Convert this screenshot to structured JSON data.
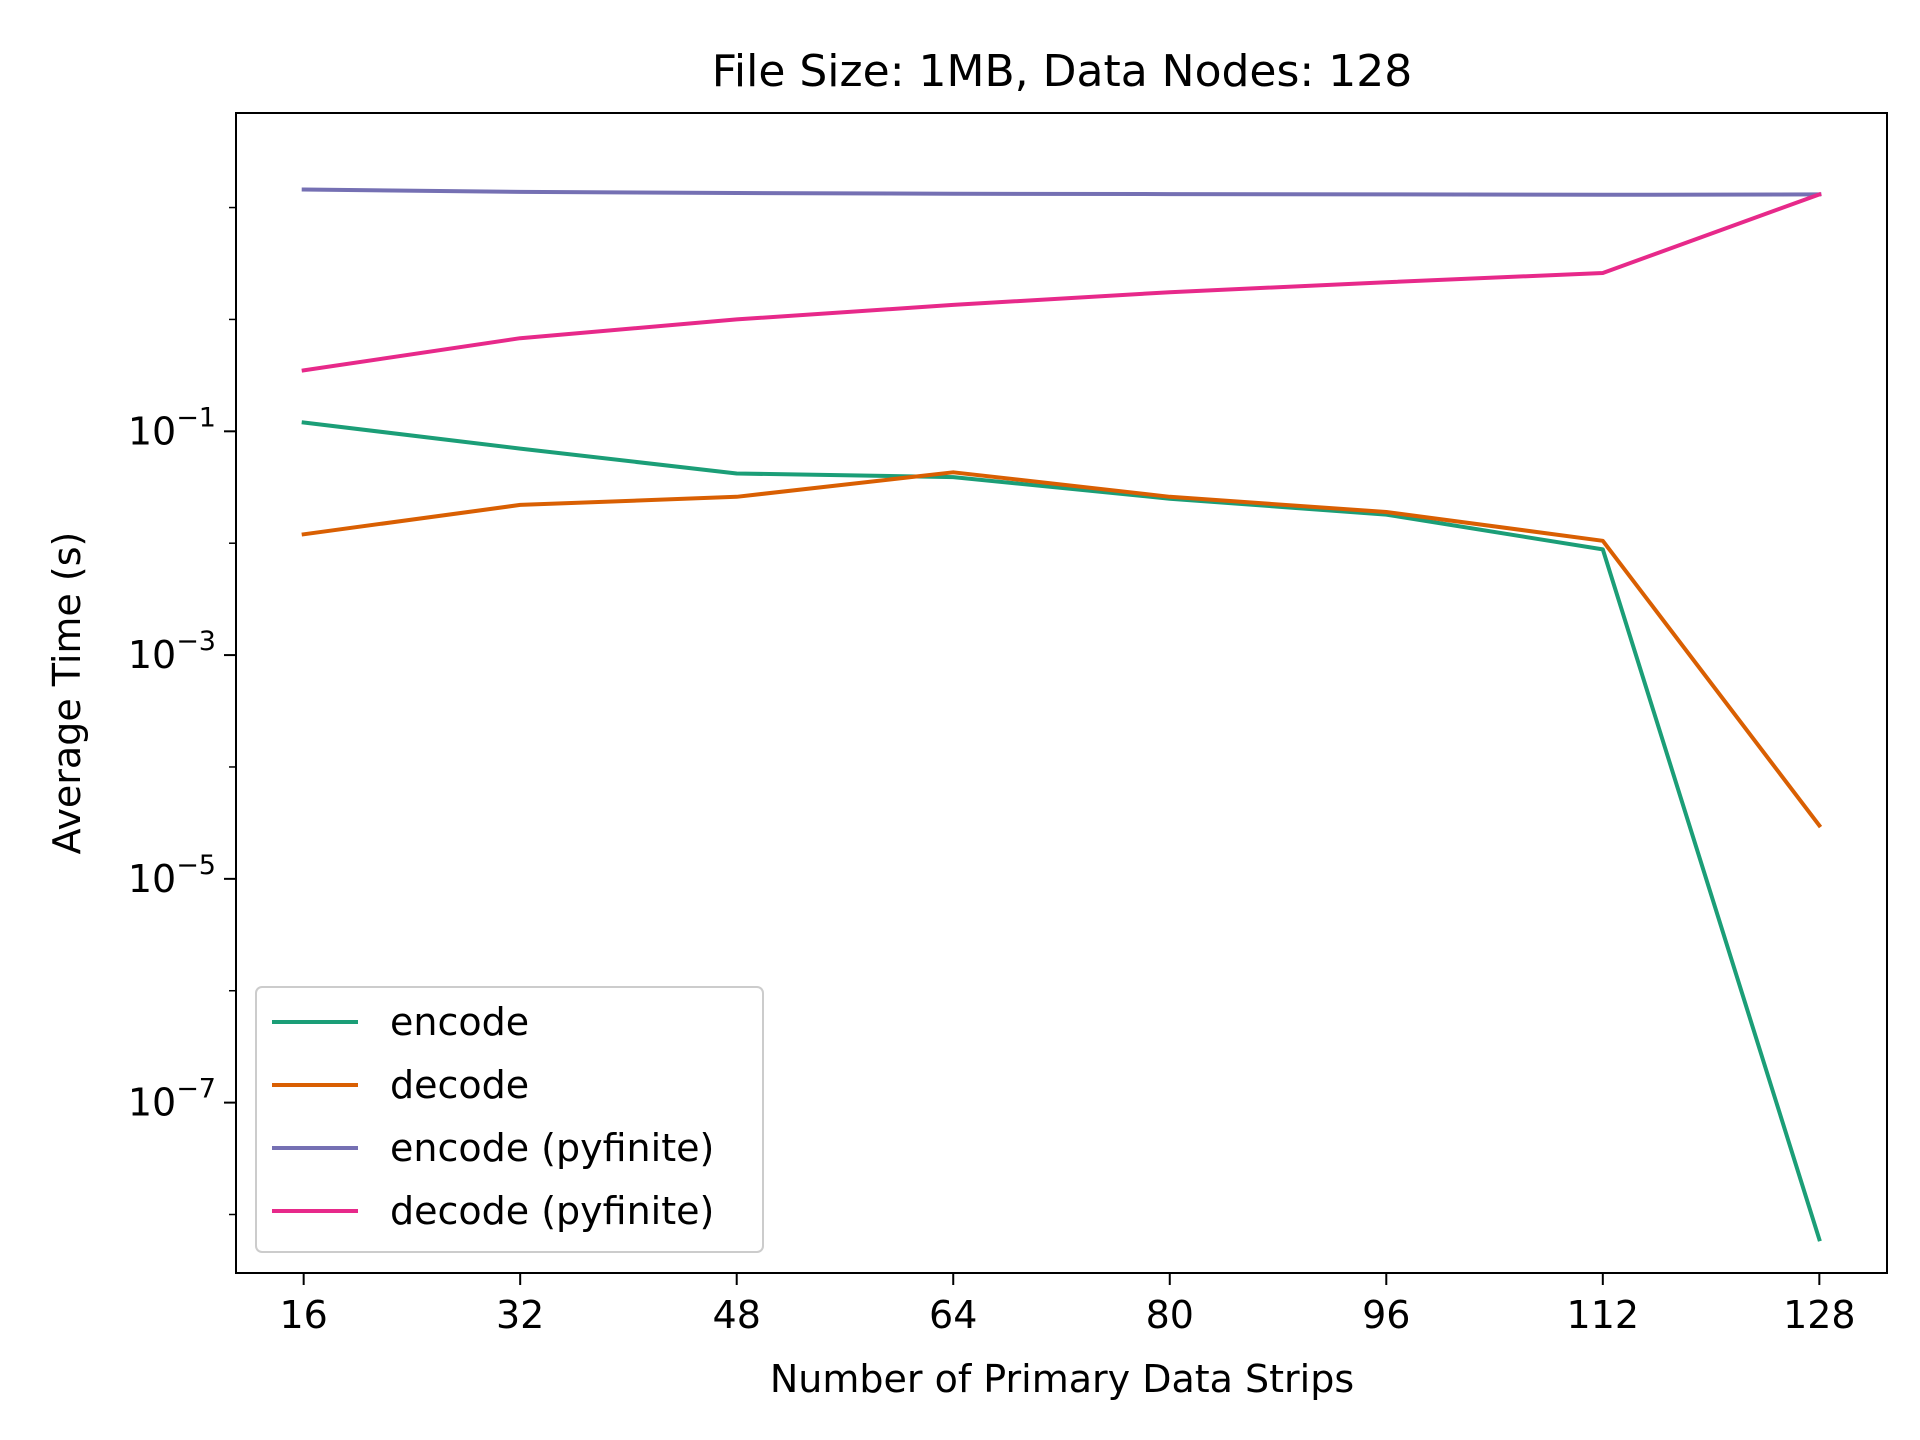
{
  "chart_data": {
    "type": "line",
    "title": "File Size: 1MB, Data Nodes: 128",
    "xlabel": "Number of Primary Data Strips",
    "ylabel": "Average Time (s)",
    "y_scale": "log",
    "x": [
      16,
      32,
      48,
      64,
      80,
      96,
      112,
      128
    ],
    "xlim": [
      11,
      133
    ],
    "ylim": [
      3e-09,
      70
    ],
    "x_ticks": [
      16,
      32,
      48,
      64,
      80,
      96,
      112,
      128
    ],
    "y_ticks": [
      {
        "value": 0.1,
        "base": "10",
        "exp": "−1"
      },
      {
        "value": 0.001,
        "base": "10",
        "exp": "−3"
      },
      {
        "value": 1e-05,
        "base": "10",
        "exp": "−5"
      },
      {
        "value": 1e-07,
        "base": "10",
        "exp": "−7"
      }
    ],
    "grid": false,
    "legend_position": "lower-left",
    "series": [
      {
        "name": "encode",
        "color": "#1b9e77",
        "values": [
          0.12,
          0.07,
          0.042,
          0.039,
          0.025,
          0.018,
          0.0088,
          6e-09
        ]
      },
      {
        "name": "decode",
        "color": "#d95f02",
        "values": [
          0.012,
          0.022,
          0.026,
          0.043,
          0.026,
          0.019,
          0.0105,
          3e-05
        ]
      },
      {
        "name": "encode (pyfinite)",
        "color": "#7570b3",
        "values": [
          14.5,
          13.8,
          13.5,
          13.3,
          13.2,
          13.1,
          13.0,
          13.1
        ]
      },
      {
        "name": "decode (pyfinite)",
        "color": "#e7298a",
        "values": [
          0.35,
          0.68,
          1.0,
          1.35,
          1.75,
          2.15,
          2.6,
          13.1
        ]
      }
    ]
  }
}
